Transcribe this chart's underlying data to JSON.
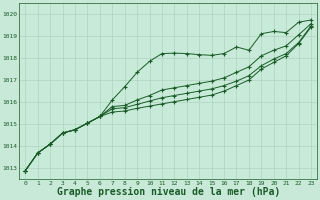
{
  "background_color": "#c8e8d8",
  "plot_bg_color": "#c8ead8",
  "line_color": "#1a5c28",
  "grid_color": "#b0d4c0",
  "xlabel": "Graphe pression niveau de la mer (hPa)",
  "xlabel_fontsize": 7,
  "ylim": [
    1012.5,
    1020.5
  ],
  "xlim": [
    -0.5,
    23.5
  ],
  "yticks": [
    1013,
    1014,
    1015,
    1016,
    1017,
    1018,
    1019,
    1020
  ],
  "xticks": [
    0,
    1,
    2,
    3,
    4,
    5,
    6,
    7,
    8,
    9,
    10,
    11,
    12,
    13,
    14,
    15,
    16,
    17,
    18,
    19,
    20,
    21,
    22,
    23
  ],
  "series": [
    [
      1012.9,
      1013.7,
      1014.1,
      1014.6,
      1014.75,
      1015.05,
      1015.35,
      1016.1,
      1016.7,
      1017.35,
      1017.85,
      1018.2,
      1018.22,
      1018.2,
      1018.15,
      1018.12,
      1018.2,
      1018.5,
      1018.35,
      1019.1,
      1019.2,
      1019.15,
      1019.62,
      1019.72
    ],
    [
      1012.9,
      1013.7,
      1014.1,
      1014.6,
      1014.75,
      1015.05,
      1015.35,
      1015.8,
      1015.85,
      1016.1,
      1016.3,
      1016.55,
      1016.65,
      1016.75,
      1016.85,
      1016.95,
      1017.1,
      1017.35,
      1017.6,
      1018.1,
      1018.35,
      1018.55,
      1019.05,
      1019.55
    ],
    [
      1012.9,
      1013.7,
      1014.1,
      1014.6,
      1014.75,
      1015.05,
      1015.35,
      1015.7,
      1015.75,
      1015.9,
      1016.05,
      1016.2,
      1016.3,
      1016.4,
      1016.5,
      1016.6,
      1016.75,
      1016.95,
      1017.2,
      1017.65,
      1017.95,
      1018.2,
      1018.7,
      1019.45
    ],
    [
      1012.9,
      1013.7,
      1014.1,
      1014.6,
      1014.75,
      1015.05,
      1015.35,
      1015.55,
      1015.6,
      1015.72,
      1015.82,
      1015.92,
      1016.02,
      1016.12,
      1016.22,
      1016.32,
      1016.5,
      1016.75,
      1017.0,
      1017.5,
      1017.8,
      1018.1,
      1018.65,
      1019.4
    ]
  ]
}
